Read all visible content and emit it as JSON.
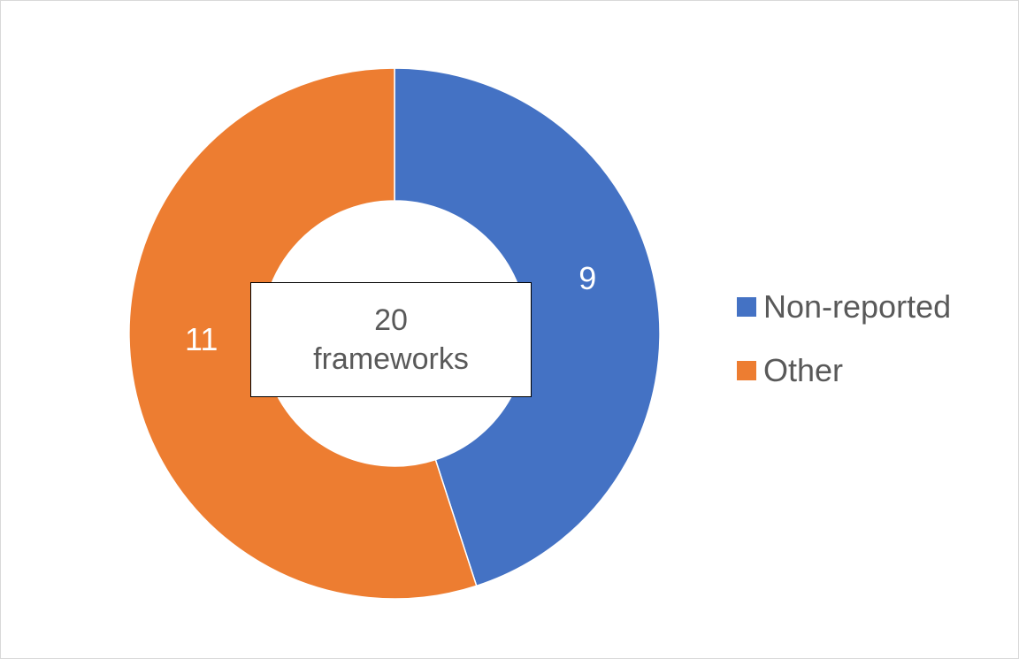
{
  "chart_data": {
    "type": "pie",
    "style": "donut",
    "categories": [
      "Non-reported",
      "Other"
    ],
    "values": [
      9,
      11
    ],
    "data_labels": [
      "9",
      "11"
    ],
    "colors": [
      "#4472C4",
      "#ED7D31"
    ],
    "center_label": {
      "line1": "20",
      "line2": "frameworks"
    },
    "legend": {
      "position": "right",
      "entries": [
        "Non-reported",
        "Other"
      ]
    }
  }
}
